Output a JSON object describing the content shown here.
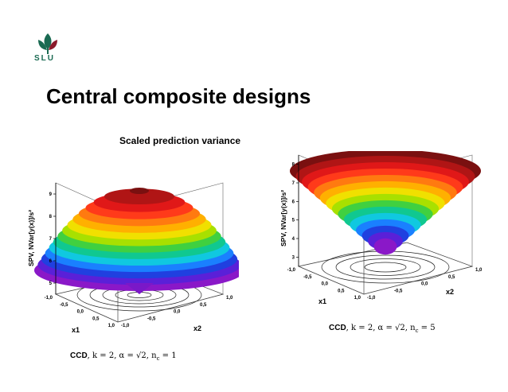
{
  "logo": {
    "icon": "slu-leaf-logo",
    "text": "SLU",
    "color": "#1a6a52"
  },
  "title": "Central composite designs",
  "subtitle": "Scaled prediction variance",
  "plots": [
    {
      "ylabel": "SPV, NVar[y(x)]/s²",
      "yticks": [
        "5",
        "6",
        "7",
        "8",
        "9"
      ],
      "x1label": "x1",
      "x2label": "x2",
      "x1ticks": [
        "-1,0",
        "-0,5",
        "0,0",
        "0,5",
        "1,0"
      ],
      "x2ticks": [
        "1,0",
        "0,5",
        "0,0",
        "-0,5",
        "-1,0"
      ],
      "caption_bold": "CCD",
      "caption_rest": ", k = 2, α = √2, n",
      "caption_sub": "c",
      "caption_end": " = 1",
      "surface": "dome"
    },
    {
      "ylabel": "SPV, NVar[y(x)]/s²",
      "yticks": [
        "3",
        "4",
        "5",
        "6",
        "7",
        "8"
      ],
      "x1label": "x1",
      "x2label": "x2",
      "x1ticks": [
        "-1,0",
        "-0,5",
        "0,0",
        "0,5",
        "1,0"
      ],
      "x2ticks": [
        "1,0",
        "0,5",
        "0,0",
        "-0,5",
        "-1,0"
      ],
      "caption_bold": "CCD",
      "caption_rest": ", k = 2, α = √2, n",
      "caption_sub": "c",
      "caption_end": " = 5",
      "surface": "bowl"
    }
  ]
}
